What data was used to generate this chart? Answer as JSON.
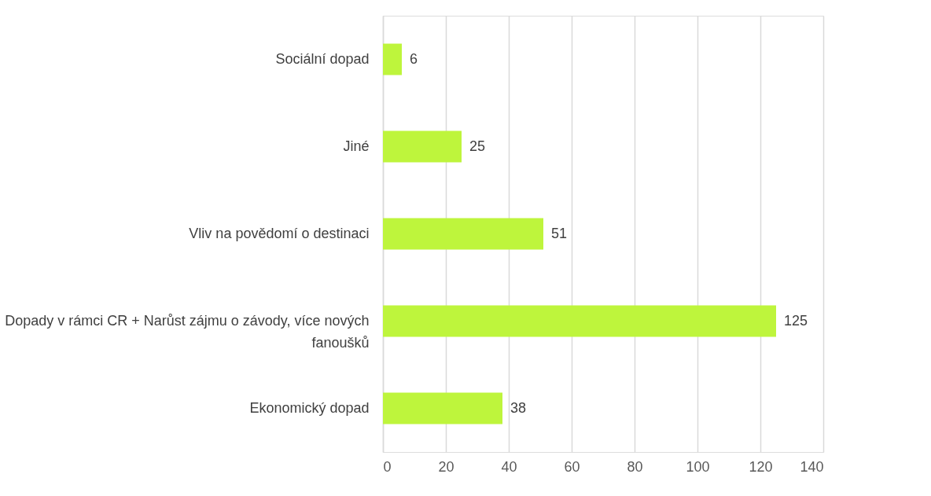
{
  "chart_data": {
    "type": "bar",
    "orientation": "horizontal",
    "categories": [
      "Sociální dopad",
      "Jiné",
      "Vliv na povědomí o destinaci",
      "Dopady v rámci CR + Narůst zájmu o závody, více nových fanoušků",
      "Ekonomický dopad"
    ],
    "values": [
      6,
      25,
      51,
      125,
      38
    ],
    "color": "#bef53c",
    "xlim": [
      0,
      140
    ],
    "xticks": [
      0,
      20,
      40,
      60,
      80,
      100,
      120,
      140
    ],
    "grid": "x",
    "data_labels": true
  }
}
